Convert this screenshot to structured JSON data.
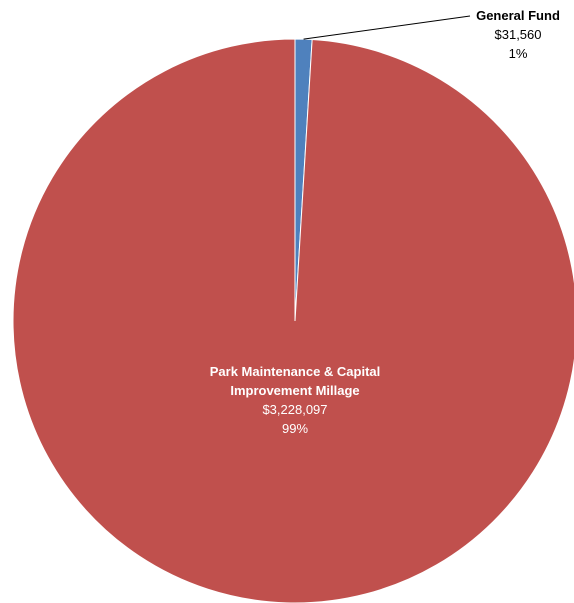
{
  "chart_data": {
    "type": "pie",
    "title": "",
    "slices": [
      {
        "label_lines": [
          "Park Maintenance & Capital",
          "Improvement Millage"
        ],
        "value": 3228097,
        "value_label": "$3,228,097",
        "percent_label": "99%",
        "color": "#c0504d"
      },
      {
        "label_lines": [
          "General Fund"
        ],
        "value": 31560,
        "value_label": "$31,560",
        "percent_label": "1%",
        "color": "#4f81bd"
      }
    ],
    "legend": "none"
  }
}
